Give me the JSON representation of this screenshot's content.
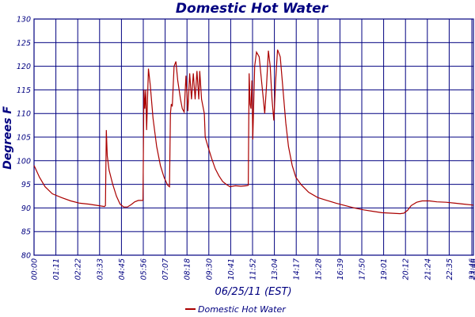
{
  "chart_data": {
    "type": "line",
    "title": "Domestic Hot Water",
    "xlabel": "06/25/11 (EST)",
    "ylabel": "Degrees F",
    "ylim": [
      80,
      130
    ],
    "yticks": [
      "80",
      "85",
      "90",
      "95",
      "100",
      "105",
      "110",
      "115",
      "120",
      "125",
      "130"
    ],
    "xlim_hours": [
      0,
      24
    ],
    "xticks": [
      "00:00",
      "01:11",
      "02:22",
      "03:33",
      "04:45",
      "05:56",
      "07:07",
      "08:18",
      "09:30",
      "10:41",
      "11:52",
      "13:04",
      "14:17",
      "15:28",
      "16:39",
      "17:50",
      "19:01",
      "20:12",
      "21:24",
      "22:35",
      "23:46",
      "23:46"
    ],
    "grid": true,
    "legend_position": "bottom",
    "colors": {
      "series": "#aa0000",
      "axis": "#000080"
    },
    "series": [
      {
        "name": "Domestic Hot Water",
        "points": [
          [
            0.0,
            99
          ],
          [
            0.3,
            96.5
          ],
          [
            0.6,
            94.5
          ],
          [
            1.0,
            93.0
          ],
          [
            1.5,
            92.2
          ],
          [
            2.0,
            91.5
          ],
          [
            2.5,
            91.0
          ],
          [
            3.0,
            90.8
          ],
          [
            3.5,
            90.5
          ],
          [
            3.85,
            90.3
          ],
          [
            3.9,
            90.5
          ],
          [
            3.95,
            106.5
          ],
          [
            4.0,
            101
          ],
          [
            4.1,
            98
          ],
          [
            4.3,
            95
          ],
          [
            4.5,
            92.5
          ],
          [
            4.7,
            90.8
          ],
          [
            4.9,
            90.2
          ],
          [
            5.1,
            90.2
          ],
          [
            5.3,
            90.7
          ],
          [
            5.5,
            91.3
          ],
          [
            5.7,
            91.6
          ],
          [
            5.95,
            91.6
          ],
          [
            6.0,
            115
          ],
          [
            6.05,
            111
          ],
          [
            6.1,
            115
          ],
          [
            6.15,
            106.5
          ],
          [
            6.25,
            119.5
          ],
          [
            6.35,
            116
          ],
          [
            6.5,
            109
          ],
          [
            6.7,
            103
          ],
          [
            6.9,
            99
          ],
          [
            7.1,
            96.5
          ],
          [
            7.3,
            94.8
          ],
          [
            7.4,
            94.5
          ],
          [
            7.45,
            110
          ],
          [
            7.5,
            112
          ],
          [
            7.55,
            111.5
          ],
          [
            7.65,
            120
          ],
          [
            7.75,
            121
          ],
          [
            7.85,
            117
          ],
          [
            8.0,
            113
          ],
          [
            8.1,
            111
          ],
          [
            8.2,
            110.3
          ],
          [
            8.3,
            118
          ],
          [
            8.4,
            110.5
          ],
          [
            8.5,
            118.5
          ],
          [
            8.6,
            113
          ],
          [
            8.7,
            118.5
          ],
          [
            8.8,
            113
          ],
          [
            8.9,
            119
          ],
          [
            9.0,
            113
          ],
          [
            9.05,
            119
          ],
          [
            9.15,
            113
          ],
          [
            9.3,
            110
          ],
          [
            9.35,
            105
          ],
          [
            9.5,
            103
          ],
          [
            9.7,
            100.5
          ],
          [
            9.9,
            98.3
          ],
          [
            10.1,
            96.8
          ],
          [
            10.3,
            95.6
          ],
          [
            10.5,
            95
          ],
          [
            10.7,
            94.5
          ],
          [
            11.0,
            94.7
          ],
          [
            11.3,
            94.6
          ],
          [
            11.6,
            94.7
          ],
          [
            11.7,
            94.8
          ],
          [
            11.75,
            118.5
          ],
          [
            11.8,
            112
          ],
          [
            11.85,
            111
          ],
          [
            11.9,
            117
          ],
          [
            11.95,
            104.5
          ],
          [
            12.05,
            120
          ],
          [
            12.15,
            123
          ],
          [
            12.3,
            122
          ],
          [
            12.45,
            116
          ],
          [
            12.6,
            110
          ],
          [
            12.7,
            116
          ],
          [
            12.8,
            123.3
          ],
          [
            12.9,
            120
          ],
          [
            13.0,
            113
          ],
          [
            13.1,
            108.5
          ],
          [
            13.2,
            117
          ],
          [
            13.3,
            123.5
          ],
          [
            13.45,
            122
          ],
          [
            13.6,
            115
          ],
          [
            13.75,
            108
          ],
          [
            13.9,
            103
          ],
          [
            14.1,
            99
          ],
          [
            14.3,
            96.5
          ],
          [
            14.6,
            94.9
          ],
          [
            15.0,
            93.3
          ],
          [
            15.5,
            92.2
          ],
          [
            16.0,
            91.6
          ],
          [
            16.5,
            91.0
          ],
          [
            17.0,
            90.5
          ],
          [
            17.5,
            90.0
          ],
          [
            18.0,
            89.6
          ],
          [
            18.5,
            89.3
          ],
          [
            19.0,
            89.0
          ],
          [
            19.5,
            88.9
          ],
          [
            20.0,
            88.8
          ],
          [
            20.2,
            88.9
          ],
          [
            20.4,
            89.5
          ],
          [
            20.6,
            90.5
          ],
          [
            20.9,
            91.2
          ],
          [
            21.2,
            91.5
          ],
          [
            21.6,
            91.5
          ],
          [
            22.0,
            91.3
          ],
          [
            22.5,
            91.2
          ],
          [
            23.0,
            91.0
          ],
          [
            23.5,
            90.8
          ],
          [
            24.0,
            90.6
          ]
        ]
      }
    ]
  }
}
